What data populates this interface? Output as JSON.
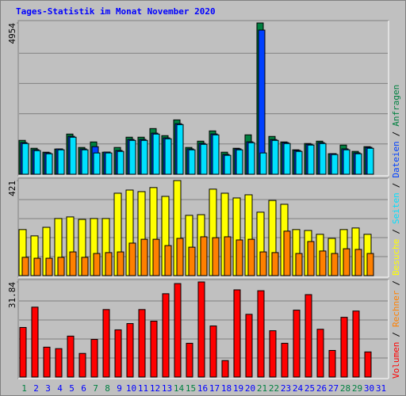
{
  "chart_data": {
    "type": "bar",
    "title": "Tages-Statistik im Monat November 2020",
    "title_color": "#0000ff",
    "categories": [
      "1",
      "2",
      "3",
      "4",
      "5",
      "6",
      "7",
      "8",
      "9",
      "10",
      "11",
      "12",
      "13",
      "14",
      "15",
      "16",
      "17",
      "18",
      "19",
      "20",
      "21",
      "22",
      "23",
      "24",
      "25",
      "26",
      "27",
      "28",
      "29",
      "30",
      "31"
    ],
    "category_colors": [
      "#008040",
      "#0000ff",
      "#0000ff",
      "#0000ff",
      "#0000ff",
      "#0000ff",
      "#008040",
      "#008040",
      "#0000ff",
      "#0000ff",
      "#0000ff",
      "#0000ff",
      "#0000ff",
      "#008040",
      "#008040",
      "#0000ff",
      "#0000ff",
      "#0000ff",
      "#0000ff",
      "#0000ff",
      "#008040",
      "#008040",
      "#0000ff",
      "#0000ff",
      "#0000ff",
      "#0000ff",
      "#0000ff",
      "#008040",
      "#008040",
      "#0000ff",
      "#0000ff"
    ],
    "legend_separator": "/",
    "panels": [
      {
        "ylim": [
          0,
          4954
        ],
        "yticks": [
          4954
        ],
        "series": [
          {
            "name": "Anfragen",
            "color": "#008040",
            "values": [
              1109,
              851,
              722,
              826,
              1316,
              877,
              1058,
              722,
              877,
              1213,
              1213,
              1496,
              1264,
              1780,
              877,
              1083,
              1419,
              722,
              851,
              1290,
              4954,
              1238,
              1058,
              800,
              1006,
              1083,
              671,
              955,
              748,
              903,
              0
            ]
          },
          {
            "name": "Dateien",
            "color": "#0040ff",
            "values": [
              1036,
              804,
              701,
              830,
              1243,
              830,
              903,
              727,
              778,
              1139,
              1139,
              1346,
              1191,
              1655,
              830,
              1010,
              1320,
              649,
              830,
              1062,
              4721,
              1135,
              1036,
              778,
              985,
              1036,
              675,
              830,
              701,
              881,
              0
            ]
          },
          {
            "name": "Seiten",
            "color": "#00e0ff",
            "values": [
              1006,
              774,
              671,
              800,
              1213,
              800,
              697,
              697,
              748,
              1109,
              1109,
              1316,
              1161,
              1625,
              800,
              980,
              1290,
              619,
              800,
              1032,
              697,
              1109,
              1006,
              748,
              955,
              1006,
              645,
              800,
              671,
              851,
              0
            ]
          }
        ]
      },
      {
        "ylim": [
          0,
          421
        ],
        "yticks": [
          421
        ],
        "series": [
          {
            "name": "Besuche",
            "color": "#ffff00",
            "values": [
              204,
              176,
              214,
              253,
              260,
              249,
              253,
              253,
              365,
              379,
              372,
              390,
              351,
              421,
              267,
              270,
              383,
              365,
              344,
              358,
              281,
              333,
              316,
              204,
              200,
              183,
              165,
              204,
              211,
              183,
              0
            ]
          },
          {
            "name": "Rechner",
            "color": "#ff8000",
            "values": [
              81,
              77,
              77,
              81,
              105,
              81,
              98,
              102,
              105,
              144,
              161,
              161,
              133,
              165,
              126,
              172,
              168,
              172,
              158,
              161,
              105,
              102,
              197,
              98,
              151,
              109,
              98,
              119,
              116,
              98,
              0
            ]
          }
        ]
      },
      {
        "ylim": [
          0,
          31.84
        ],
        "yticks": [
          31.84
        ],
        "series": [
          {
            "name": "Volumen",
            "color": "#ff0000",
            "values": [
              16.6,
              23.4,
              10.0,
              9.5,
              13.7,
              7.9,
              12.6,
              22.6,
              15.8,
              17.9,
              22.6,
              18.7,
              27.9,
              31.3,
              11.3,
              31.84,
              17.1,
              5.5,
              29.2,
              21.0,
              28.9,
              15.5,
              11.3,
              22.4,
              27.6,
              16.0,
              8.9,
              20.0,
              22.1,
              8.4,
              0
            ]
          }
        ]
      }
    ]
  }
}
